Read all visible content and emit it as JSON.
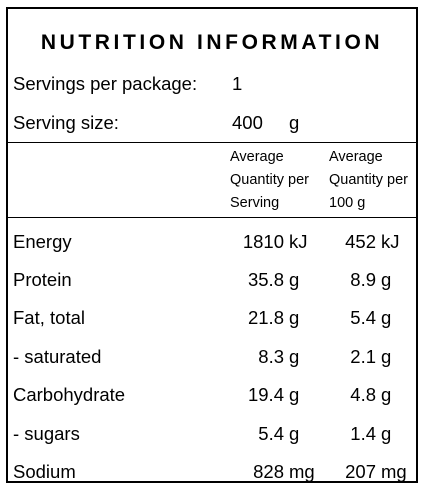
{
  "title": "NUTRITION INFORMATION",
  "servings": {
    "label": "Servings per package:",
    "value": "1"
  },
  "serving_size": {
    "label": "Serving size:",
    "value": "400",
    "unit": "g"
  },
  "headers": {
    "per_serving": [
      "Average",
      "Quantity per",
      "Serving"
    ],
    "per_100g": [
      "Average",
      "Quantity per",
      "100 g"
    ]
  },
  "rows": [
    {
      "name": "Energy",
      "serving": "1810",
      "serving_unit": "kJ",
      "per100": "452",
      "per100_unit": "kJ"
    },
    {
      "name": "Protein",
      "serving": "35.8",
      "serving_unit": "g",
      "per100": "8.9",
      "per100_unit": "g"
    },
    {
      "name": "Fat, total",
      "serving": "21.8",
      "serving_unit": "g",
      "per100": "5.4",
      "per100_unit": "g"
    },
    {
      "name": "- saturated",
      "serving": "8.3",
      "serving_unit": "g",
      "per100": "2.1",
      "per100_unit": "g"
    },
    {
      "name": "Carbohydrate",
      "serving": "19.4",
      "serving_unit": "g",
      "per100": "4.8",
      "per100_unit": "g"
    },
    {
      "name": "- sugars",
      "serving": "5.4",
      "serving_unit": "g",
      "per100": "1.4",
      "per100_unit": "g"
    },
    {
      "name": "Sodium",
      "serving": "828",
      "serving_unit": "mg",
      "per100": "207",
      "per100_unit": "mg"
    }
  ]
}
